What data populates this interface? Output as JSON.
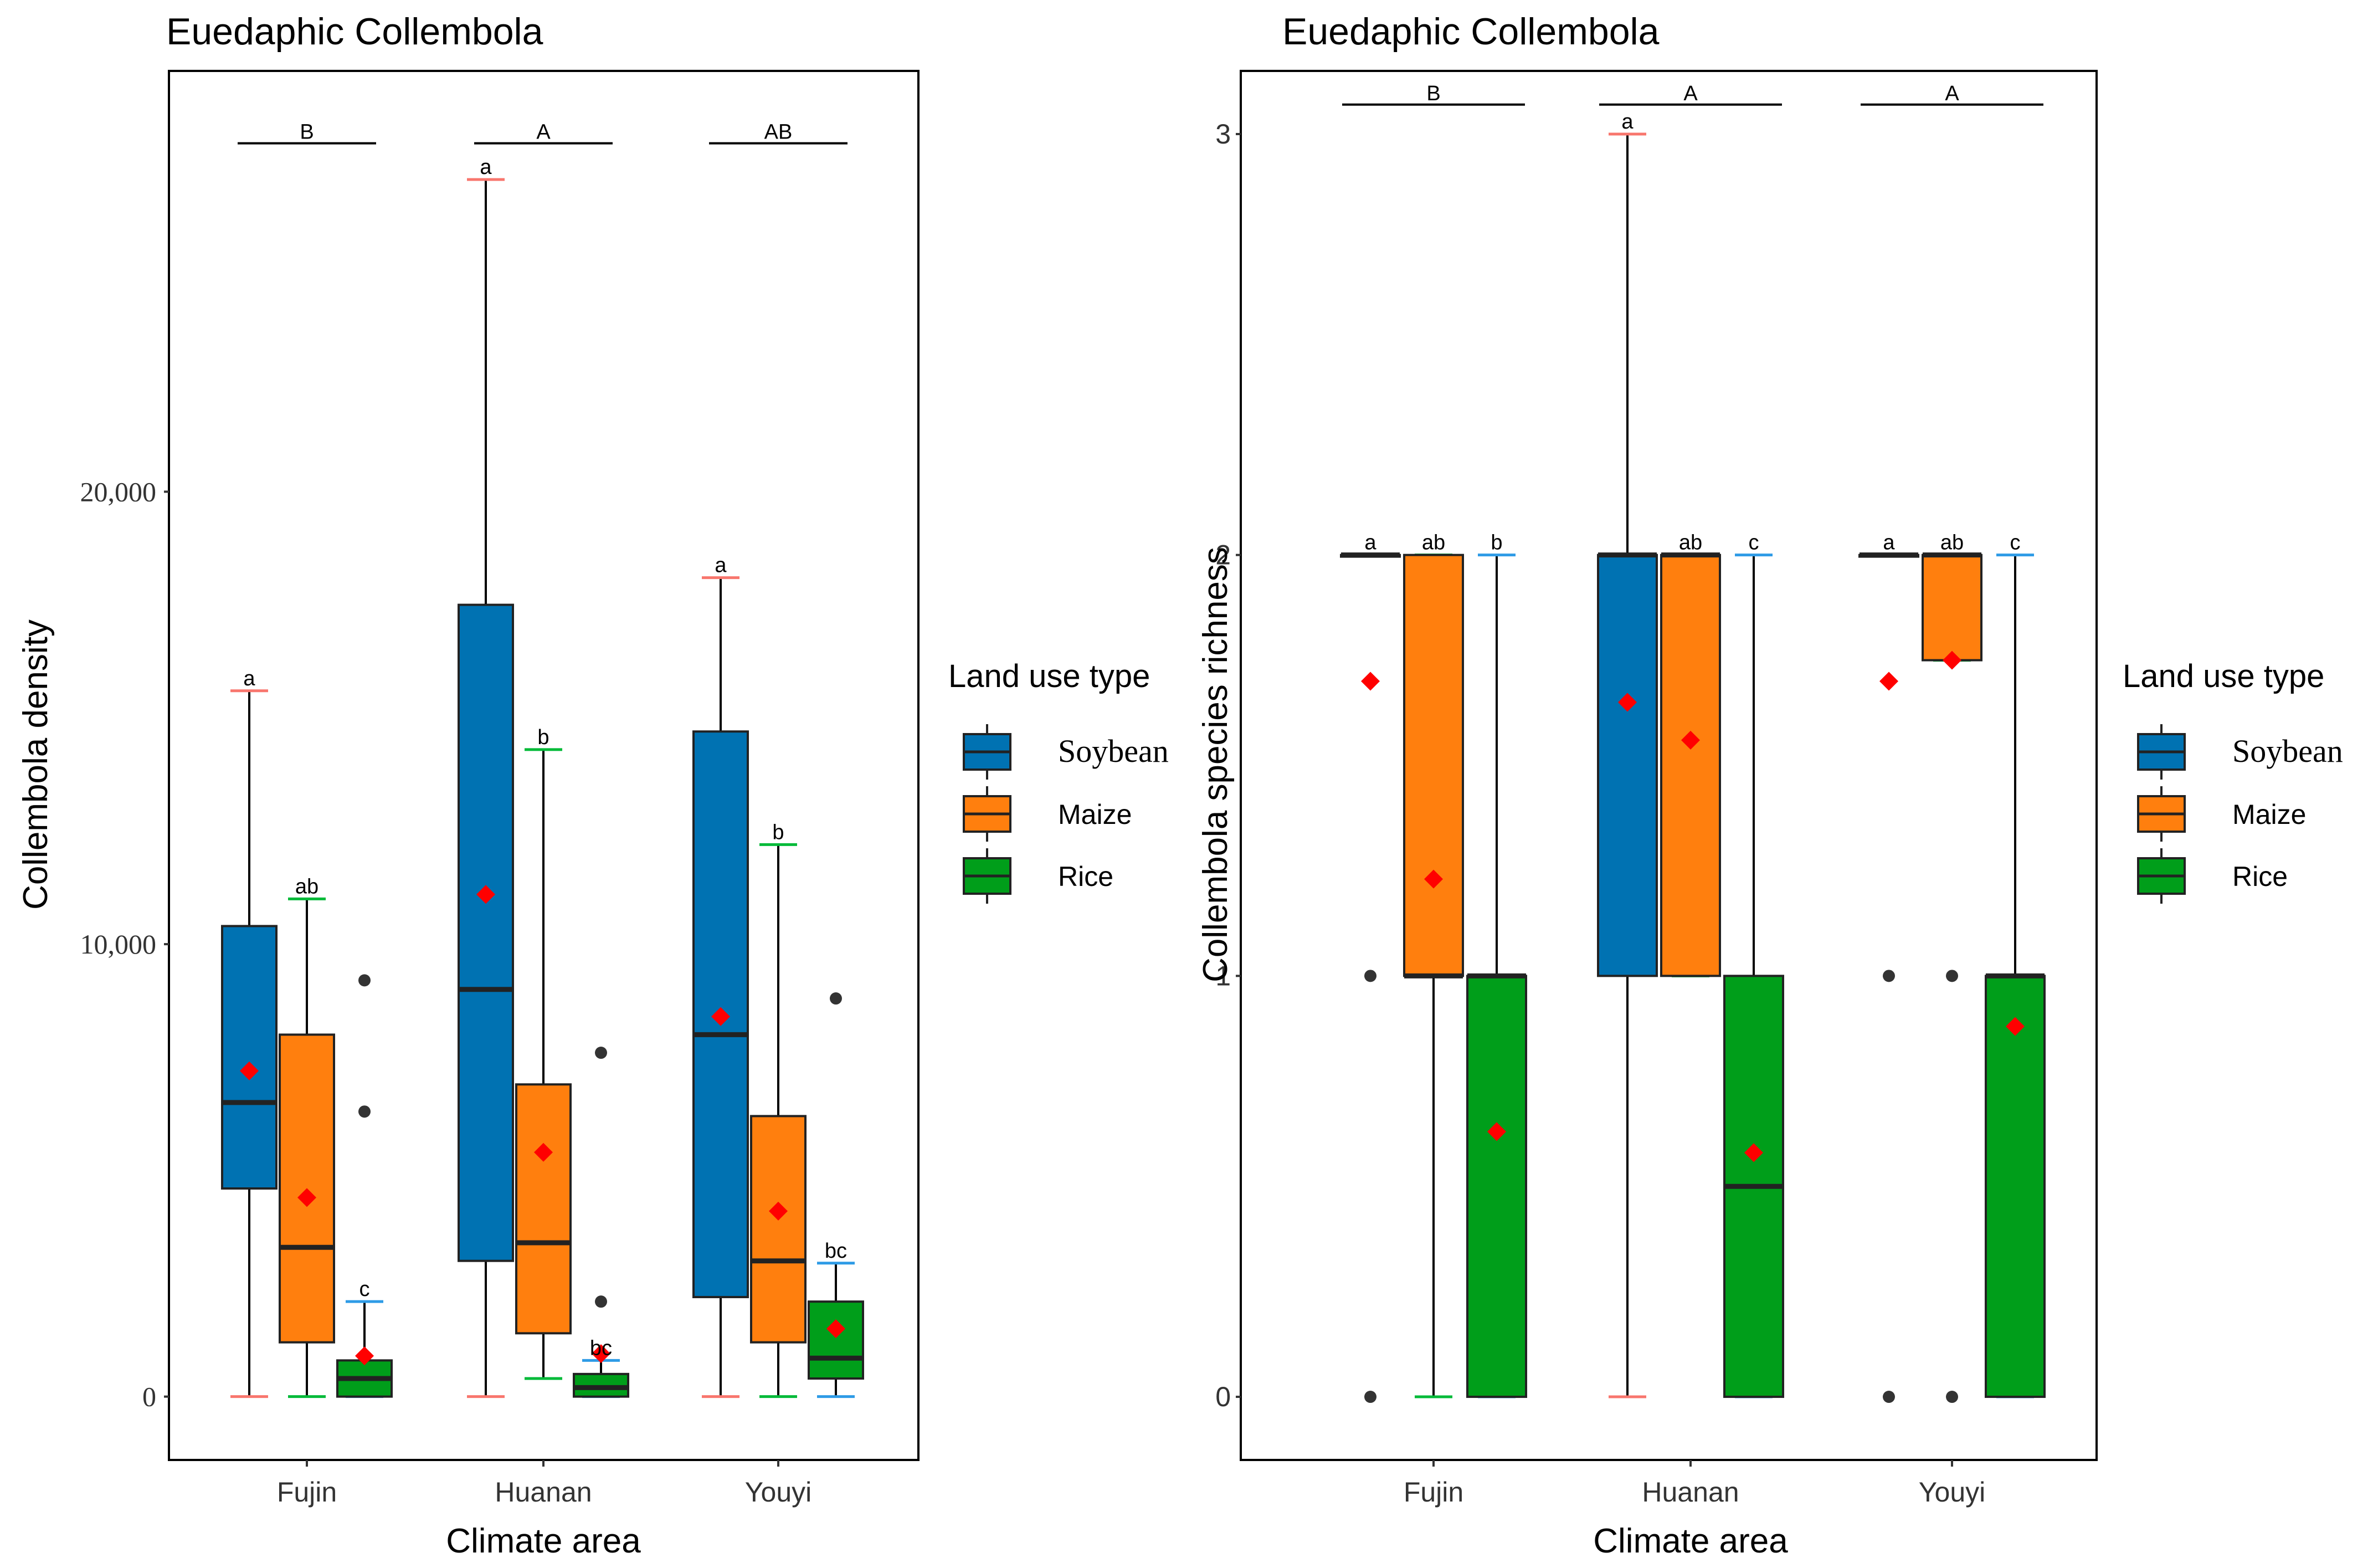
{
  "figure": {
    "description_type": "two-panel grouped boxplot figure"
  },
  "legend": {
    "title": "Land use type",
    "entries": [
      {
        "name": "Soybean",
        "color": "#0072B2"
      },
      {
        "name": "Maize",
        "color": "#FF7F0E"
      },
      {
        "name": "Rice",
        "color": "#009E1A"
      }
    ]
  },
  "colors": {
    "soybean": "#0072B2",
    "maize": "#FF7F0E",
    "rice": "#009E1A",
    "mean_marker": "#FF0000",
    "soybean_cap": "#F8766D",
    "maize_cap": "#00BA38",
    "rice_cap": "#2E9BE6"
  },
  "chart_data": [
    {
      "type": "box",
      "title": "Euedaphic Collembola",
      "xlabel": "Climate area",
      "ylabel": "Collembola density",
      "ylim": [
        -1400,
        29300
      ],
      "yticks": [
        0,
        10000,
        20000
      ],
      "ytick_labels": [
        "0",
        "10,000",
        "20,000"
      ],
      "categories": [
        "Fujin",
        "Huanan",
        "Youyi"
      ],
      "group_letters": [
        "B",
        "A",
        "AB"
      ],
      "group_bar_value": 27700,
      "series": [
        {
          "name": "Soybean",
          "boxes": [
            {
              "min": 0,
              "q1": 4600,
              "median": 6500,
              "q3": 10400,
              "max": 15600,
              "mean": 7200,
              "outliers": [],
              "letter": "a"
            },
            {
              "min": 0,
              "q1": 3000,
              "median": 9000,
              "q3": 17500,
              "max": 26900,
              "mean": 11100,
              "outliers": [],
              "letter": "a"
            },
            {
              "min": 0,
              "q1": 2200,
              "median": 8000,
              "q3": 14700,
              "max": 18100,
              "mean": 8400,
              "outliers": [],
              "letter": "a"
            }
          ]
        },
        {
          "name": "Maize",
          "boxes": [
            {
              "min": 0,
              "q1": 1200,
              "median": 3300,
              "q3": 8000,
              "max": 11000,
              "mean": 4400,
              "outliers": [],
              "letter": "ab"
            },
            {
              "min": 400,
              "q1": 1400,
              "median": 3400,
              "q3": 6900,
              "max": 14300,
              "mean": 5400,
              "outliers": [],
              "letter": "b"
            },
            {
              "min": 0,
              "q1": 1200,
              "median": 3000,
              "q3": 6200,
              "max": 12200,
              "mean": 4100,
              "outliers": [],
              "letter": "b"
            }
          ]
        },
        {
          "name": "Rice",
          "boxes": [
            {
              "min": 0,
              "q1": 0,
              "median": 400,
              "q3": 800,
              "max": 2100,
              "mean": 900,
              "outliers": [
                6300,
                9200
              ],
              "letter": "c"
            },
            {
              "min": 0,
              "q1": 0,
              "median": 200,
              "q3": 500,
              "max": 800,
              "mean": 950,
              "outliers": [
                2100,
                7600
              ],
              "letter": "bc"
            },
            {
              "min": 0,
              "q1": 400,
              "median": 850,
              "q3": 2100,
              "max": 2950,
              "mean": 1500,
              "outliers": [
                8800
              ],
              "letter": "bc"
            }
          ]
        }
      ]
    },
    {
      "type": "box",
      "title": "Euedaphic Collembola",
      "xlabel": "Climate area",
      "ylabel": "Collembola species richness",
      "ylim": [
        -0.15,
        3.15
      ],
      "yticks": [
        0,
        1,
        2,
        3
      ],
      "ytick_labels": [
        "0",
        "1",
        "2",
        "3"
      ],
      "categories": [
        "Fujin",
        "Huanan",
        "Youyi"
      ],
      "group_letters": [
        "B",
        "A",
        "A"
      ],
      "group_bar_value": 3.07,
      "series": [
        {
          "name": "Soybean",
          "boxes": [
            {
              "min": 2,
              "q1": 2,
              "median": 2,
              "q3": 2,
              "max": 2,
              "mean": 1.7,
              "outliers": [
                0,
                1
              ],
              "letter": "a"
            },
            {
              "min": 0,
              "q1": 1,
              "median": 2,
              "q3": 2,
              "max": 3,
              "mean": 1.65,
              "outliers": [],
              "letter": "a"
            },
            {
              "min": 2,
              "q1": 2,
              "median": 2,
              "q3": 2,
              "max": 2,
              "mean": 1.7,
              "outliers": [
                0,
                1
              ],
              "letter": "a"
            }
          ]
        },
        {
          "name": "Maize",
          "boxes": [
            {
              "min": 0,
              "q1": 1,
              "median": 1,
              "q3": 2,
              "max": 2,
              "mean": 1.23,
              "outliers": [],
              "letter": "ab"
            },
            {
              "min": 1,
              "q1": 1,
              "median": 2,
              "q3": 2,
              "max": 2,
              "mean": 1.56,
              "outliers": [],
              "letter": "ab"
            },
            {
              "min": 1.75,
              "q1": 1.75,
              "median": 2,
              "q3": 2,
              "max": 2,
              "mean": 1.75,
              "outliers": [
                0,
                1
              ],
              "letter": "ab"
            }
          ]
        },
        {
          "name": "Rice",
          "boxes": [
            {
              "min": 0,
              "q1": 0,
              "median": 1,
              "q3": 1,
              "max": 2,
              "mean": 0.63,
              "outliers": [],
              "letter": "b"
            },
            {
              "min": 0,
              "q1": 0,
              "median": 0.5,
              "q3": 1,
              "max": 2,
              "mean": 0.58,
              "outliers": [],
              "letter": "c"
            },
            {
              "min": 0,
              "q1": 0,
              "median": 1,
              "q3": 1,
              "max": 2,
              "mean": 0.88,
              "outliers": [],
              "letter": "c"
            }
          ]
        }
      ]
    }
  ]
}
